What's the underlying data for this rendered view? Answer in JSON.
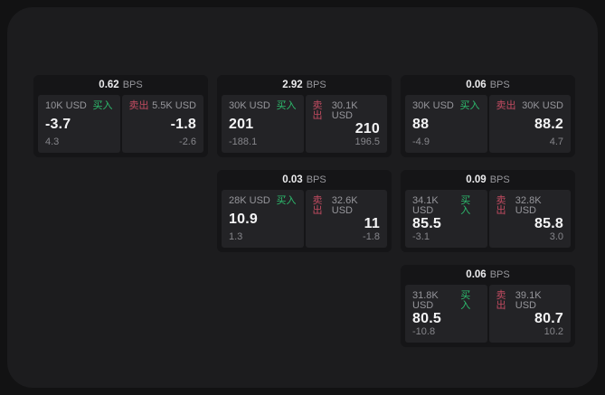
{
  "colors": {
    "page_bg": "#121213",
    "panel_bg": "#1c1c1e",
    "card_bg": "#151517",
    "tile_bg": "#232326",
    "label_gray": "#96969b",
    "delta_gray": "#86868b",
    "value_white": "#f4f4f5",
    "header_white": "#ececee",
    "header_gray": "#97979c",
    "buy_green": "#2dbd6e",
    "sell_red": "#c24b61"
  },
  "labels": {
    "bps": "BPS",
    "buy": "买入",
    "sell": "卖出"
  },
  "cards": [
    {
      "bps": "0.62",
      "row": 1,
      "col": 1,
      "buy": {
        "notional": "10K USD",
        "price": "-3.7",
        "delta": "4.3"
      },
      "sell": {
        "notional": "5.5K USD",
        "price": "-1.8",
        "delta": "-2.6"
      }
    },
    {
      "bps": "2.92",
      "row": 1,
      "col": 2,
      "buy": {
        "notional": "30K USD",
        "price": "201",
        "delta": "-188.1"
      },
      "sell": {
        "notional": "30.1K USD",
        "price": "210",
        "delta": "196.5"
      }
    },
    {
      "bps": "0.06",
      "row": 1,
      "col": 3,
      "buy": {
        "notional": "30K USD",
        "price": "88",
        "delta": "-4.9"
      },
      "sell": {
        "notional": "30K USD",
        "price": "88.2",
        "delta": "4.7"
      }
    },
    {
      "bps": "0.03",
      "row": 2,
      "col": 2,
      "buy": {
        "notional": "28K USD",
        "price": "10.9",
        "delta": "1.3"
      },
      "sell": {
        "notional": "32.6K USD",
        "price": "11",
        "delta": "-1.8"
      }
    },
    {
      "bps": "0.09",
      "row": 2,
      "col": 3,
      "buy": {
        "notional": "34.1K USD",
        "price": "85.5",
        "delta": "-3.1"
      },
      "sell": {
        "notional": "32.8K USD",
        "price": "85.8",
        "delta": "3.0"
      }
    },
    {
      "bps": "0.06",
      "row": 3,
      "col": 3,
      "buy": {
        "notional": "31.8K USD",
        "price": "80.5",
        "delta": "-10.8"
      },
      "sell": {
        "notional": "39.1K USD",
        "price": "80.7",
        "delta": "10.2"
      }
    }
  ]
}
